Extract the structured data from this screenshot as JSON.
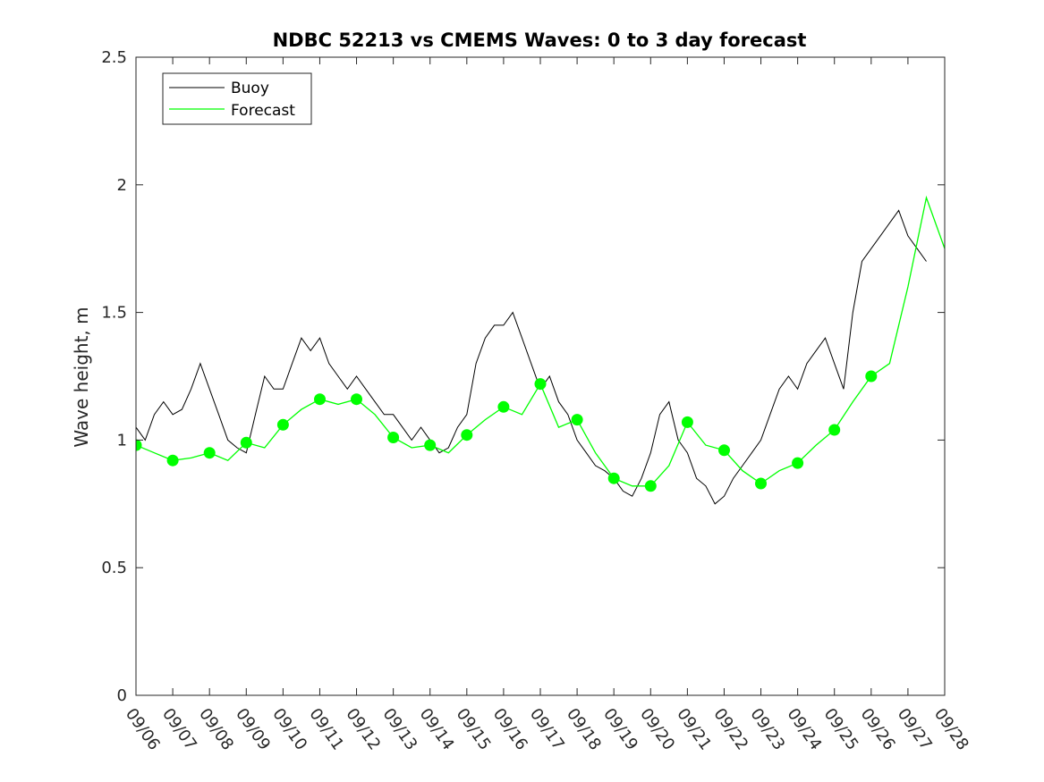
{
  "chart_data": {
    "type": "line",
    "title": "NDBC 52213 vs CMEMS Waves: 0 to 3 day forecast",
    "xlabel": "",
    "ylabel": "Wave height, m",
    "x_ticks": [
      "09/06",
      "09/07",
      "09/08",
      "09/09",
      "09/10",
      "09/11",
      "09/12",
      "09/13",
      "09/14",
      "09/15",
      "09/16",
      "09/17",
      "09/18",
      "09/19",
      "09/20",
      "09/21",
      "09/22",
      "09/23",
      "09/24",
      "09/25",
      "09/26",
      "09/27",
      "09/28"
    ],
    "y_ticks": [
      "0",
      "0.5",
      "1",
      "1.5",
      "2",
      "2.5"
    ],
    "ylim": [
      0,
      2.5
    ],
    "grid": false,
    "legend": {
      "placement": "top-left",
      "entries": [
        "Buoy",
        "Forecast"
      ]
    },
    "colors": {
      "buoy": "#000000",
      "forecast": "#00ff00"
    },
    "series": [
      {
        "name": "Buoy",
        "x": [
          "09/06 00:00",
          "09/06 06:00",
          "09/06 12:00",
          "09/06 18:00",
          "09/07 00:00",
          "09/07 06:00",
          "09/07 12:00",
          "09/07 18:00",
          "09/08 00:00",
          "09/08 06:00",
          "09/08 12:00",
          "09/08 18:00",
          "09/09 00:00",
          "09/09 06:00",
          "09/09 12:00",
          "09/09 18:00",
          "09/10 00:00",
          "09/10 06:00",
          "09/10 12:00",
          "09/10 18:00",
          "09/11 00:00",
          "09/11 06:00",
          "09/11 12:00",
          "09/11 18:00",
          "09/12 00:00",
          "09/12 06:00",
          "09/12 12:00",
          "09/12 18:00",
          "09/13 00:00",
          "09/13 06:00",
          "09/13 12:00",
          "09/13 18:00",
          "09/14 00:00",
          "09/14 06:00",
          "09/14 12:00",
          "09/14 18:00",
          "09/15 00:00",
          "09/15 06:00",
          "09/15 12:00",
          "09/15 18:00",
          "09/16 00:00",
          "09/16 06:00",
          "09/16 12:00",
          "09/16 18:00",
          "09/17 00:00",
          "09/17 06:00",
          "09/17 12:00",
          "09/17 18:00",
          "09/18 00:00",
          "09/18 06:00",
          "09/18 12:00",
          "09/18 18:00",
          "09/19 00:00",
          "09/19 06:00",
          "09/19 12:00",
          "09/19 18:00",
          "09/20 00:00",
          "09/20 06:00",
          "09/20 12:00",
          "09/20 18:00",
          "09/21 00:00",
          "09/21 06:00",
          "09/21 12:00",
          "09/21 18:00",
          "09/22 00:00",
          "09/22 06:00",
          "09/22 12:00",
          "09/22 18:00",
          "09/23 00:00",
          "09/23 06:00",
          "09/23 12:00",
          "09/23 18:00",
          "09/24 00:00",
          "09/24 06:00",
          "09/24 12:00",
          "09/24 18:00",
          "09/25 00:00",
          "09/25 06:00",
          "09/25 12:00",
          "09/25 18:00",
          "09/26 00:00",
          "09/26 06:00",
          "09/26 12:00",
          "09/26 18:00",
          "09/27 00:00",
          "09/27 06:00",
          "09/27 12:00"
        ],
        "y": [
          1.05,
          1.0,
          1.1,
          1.15,
          1.1,
          1.12,
          1.2,
          1.3,
          1.2,
          1.1,
          1.0,
          0.97,
          0.95,
          1.1,
          1.25,
          1.2,
          1.2,
          1.3,
          1.4,
          1.35,
          1.4,
          1.3,
          1.25,
          1.2,
          1.25,
          1.2,
          1.15,
          1.1,
          1.1,
          1.05,
          1.0,
          1.05,
          1.0,
          0.95,
          0.97,
          1.05,
          1.1,
          1.3,
          1.4,
          1.45,
          1.45,
          1.5,
          1.4,
          1.3,
          1.2,
          1.25,
          1.15,
          1.1,
          1.0,
          0.95,
          0.9,
          0.88,
          0.85,
          0.8,
          0.78,
          0.85,
          0.95,
          1.1,
          1.15,
          1.0,
          0.95,
          0.85,
          0.82,
          0.75,
          0.78,
          0.85,
          0.9,
          0.95,
          1.0,
          1.1,
          1.2,
          1.25,
          1.2,
          1.3,
          1.35,
          1.4,
          1.3,
          1.2,
          1.5,
          1.7,
          1.75,
          1.8,
          1.85,
          1.9,
          1.8,
          1.75,
          1.7
        ]
      },
      {
        "name": "Forecast",
        "x": [
          "09/06 00:00",
          "09/06 12:00",
          "09/07 00:00",
          "09/07 12:00",
          "09/08 00:00",
          "09/08 12:00",
          "09/09 00:00",
          "09/09 12:00",
          "09/10 00:00",
          "09/10 12:00",
          "09/11 00:00",
          "09/11 12:00",
          "09/12 00:00",
          "09/12 12:00",
          "09/13 00:00",
          "09/13 12:00",
          "09/14 00:00",
          "09/14 12:00",
          "09/15 00:00",
          "09/15 12:00",
          "09/16 00:00",
          "09/16 12:00",
          "09/17 00:00",
          "09/17 12:00",
          "09/18 00:00",
          "09/18 12:00",
          "09/19 00:00",
          "09/19 12:00",
          "09/20 00:00",
          "09/20 12:00",
          "09/21 00:00",
          "09/21 12:00",
          "09/22 00:00",
          "09/22 12:00",
          "09/23 00:00",
          "09/23 12:00",
          "09/24 00:00",
          "09/24 12:00",
          "09/25 00:00",
          "09/25 12:00",
          "09/26 00:00",
          "09/26 12:00",
          "09/27 00:00",
          "09/27 12:00",
          "09/28 00:00"
        ],
        "y": [
          0.98,
          0.95,
          0.92,
          0.93,
          0.95,
          0.92,
          0.99,
          0.97,
          1.06,
          1.12,
          1.16,
          1.14,
          1.16,
          1.1,
          1.01,
          0.97,
          0.98,
          0.95,
          1.02,
          1.08,
          1.13,
          1.1,
          1.22,
          1.05,
          1.08,
          0.95,
          0.85,
          0.82,
          0.82,
          0.9,
          1.07,
          0.98,
          0.96,
          0.88,
          0.83,
          0.88,
          0.91,
          0.98,
          1.04,
          1.15,
          1.25,
          1.3,
          1.6,
          1.95,
          1.75
        ]
      },
      {
        "name": "Forecast markers",
        "x": [
          "09/06",
          "09/07",
          "09/08",
          "09/09",
          "09/10",
          "09/11",
          "09/12",
          "09/13",
          "09/14",
          "09/15",
          "09/16",
          "09/17",
          "09/18",
          "09/19",
          "09/20",
          "09/21",
          "09/22",
          "09/23",
          "09/24",
          "09/25",
          "09/26"
        ],
        "y": [
          0.98,
          0.92,
          0.95,
          0.99,
          1.06,
          1.16,
          1.16,
          1.01,
          0.98,
          1.02,
          1.13,
          1.22,
          1.08,
          0.85,
          0.82,
          1.07,
          0.96,
          0.83,
          0.91,
          1.04,
          1.25
        ]
      }
    ]
  }
}
